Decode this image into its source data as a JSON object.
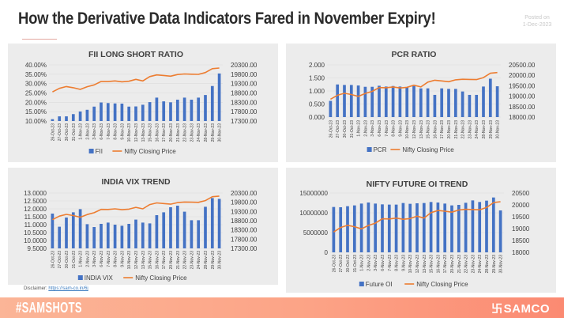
{
  "header": {
    "title": "How the Derivative Data Indicators Fared in November Expiry!",
    "posted_label": "Posted on",
    "posted_date": "1-Dec-2023"
  },
  "footer": {
    "hashtag": "#SAMSHOTS",
    "brand": "SAMCO",
    "brand_icon": "samco-logo-icon",
    "disclaimer_label": "Disclaimer:",
    "disclaimer_link": "https://sam-co.in/6j"
  },
  "colors": {
    "bar": "#4472c4",
    "line": "#ed7d31",
    "panel_bg": "#ececec",
    "footer_start": "#fbb597",
    "footer_end": "#fb8a72"
  },
  "chart_data": [
    {
      "id": "fii",
      "type": "bar+line",
      "title": "FII LONG SHORT RATIO",
      "categories": [
        "26-Oct-23",
        "27-Oct-23",
        "30-Oct-23",
        "31-Oct-23",
        "1-Nov-23",
        "2-Nov-23",
        "3-Nov-23",
        "6-Nov-23",
        "7-Nov-23",
        "8-Nov-23",
        "9-Nov-23",
        "10-Nov-23",
        "12-Nov-23",
        "13-Nov-23",
        "15-Nov-23",
        "16-Nov-23",
        "17-Nov-23",
        "20-Nov-23",
        "21-Nov-23",
        "22-Nov-23",
        "23-Nov-23",
        "24-Nov-23",
        "28-Nov-23",
        "29-Nov-23",
        "30-Nov-23"
      ],
      "series": [
        {
          "name": "FII",
          "kind": "bar",
          "axis": "left",
          "values": [
            11.0,
            12.5,
            12.5,
            13.7,
            15.1,
            16.0,
            17.7,
            19.9,
            19.6,
            19.4,
            19.3,
            17.7,
            17.8,
            18.7,
            20.1,
            22.5,
            20.5,
            20.0,
            21.4,
            22.5,
            21.4,
            22.5,
            23.9,
            28.7,
            35.4
          ]
        },
        {
          "name": "Nifty Closing Price",
          "kind": "line",
          "axis": "right",
          "values": [
            18857,
            19047,
            19141,
            19080,
            18989,
            19133,
            19231,
            19412,
            19407,
            19444,
            19395,
            19425,
            19525,
            19444,
            19675,
            19765,
            19732,
            19694,
            19783,
            19812,
            19802,
            19795,
            19890,
            20097,
            20133
          ]
        }
      ],
      "left_axis": {
        "min": 10,
        "max": 40,
        "step": 5,
        "ticks": [
          "10.00%",
          "15.00%",
          "20.00%",
          "25.00%",
          "30.00%",
          "35.00%",
          "40.00%"
        ]
      },
      "right_axis": {
        "min": 17300,
        "max": 20300,
        "step": 500,
        "ticks": [
          "17300.00",
          "17800.00",
          "18300.00",
          "18800.00",
          "19300.00",
          "19800.00",
          "20300.00"
        ]
      },
      "legend": [
        "FII",
        "Nifty Closing Price"
      ],
      "legend_position": "bottom"
    },
    {
      "id": "pcr",
      "type": "bar+line",
      "title": "PCR RATIO",
      "categories": [
        "26-Oct-23",
        "27-Oct-23",
        "30-Oct-23",
        "31-Oct-23",
        "1-Nov-23",
        "2-Nov-23",
        "3-Nov-23",
        "6-Nov-23",
        "7-Nov-23",
        "8-Nov-23",
        "9-Nov-23",
        "10-Nov-23",
        "12-Nov-23",
        "13-Nov-23",
        "15-Nov-23",
        "16-Nov-23",
        "17-Nov-23",
        "20-Nov-23",
        "21-Nov-23",
        "22-Nov-23",
        "23-Nov-23",
        "24-Nov-23",
        "28-Nov-23",
        "29-Nov-23",
        "30-Nov-23"
      ],
      "series": [
        {
          "name": "PCR",
          "kind": "bar",
          "axis": "left",
          "values": [
            0.62,
            1.25,
            1.23,
            1.23,
            1.21,
            1.16,
            1.16,
            1.2,
            1.17,
            1.19,
            1.17,
            1.14,
            1.19,
            1.1,
            1.1,
            0.85,
            1.1,
            1.08,
            1.08,
            0.98,
            0.85,
            0.85,
            1.17,
            1.47,
            1.18
          ]
        },
        {
          "name": "Nifty Closing Price",
          "kind": "line",
          "axis": "right",
          "values": [
            18857,
            19047,
            19141,
            19080,
            18989,
            19133,
            19231,
            19412,
            19407,
            19444,
            19395,
            19425,
            19525,
            19444,
            19675,
            19765,
            19732,
            19694,
            19783,
            19812,
            19802,
            19795,
            19890,
            20097,
            20133
          ]
        }
      ],
      "left_axis": {
        "min": 0,
        "max": 2,
        "step": 0.5,
        "ticks": [
          "0.000",
          "0.500",
          "1.000",
          "1.500",
          "2.000"
        ]
      },
      "right_axis": {
        "min": 18000,
        "max": 20500,
        "step": 500,
        "ticks": [
          "18000.00",
          "18500.00",
          "19000.00",
          "19500.00",
          "20000.00",
          "20500.00"
        ]
      },
      "legend": [
        "PCR",
        "Nifty Closing Price"
      ],
      "legend_position": "bottom"
    },
    {
      "id": "vix",
      "type": "bar+line",
      "title": "INDIA VIX TREND",
      "categories": [
        "26-Oct-23",
        "27-Oct-23",
        "30-Oct-23",
        "31-Oct-23",
        "1-Nov-23",
        "2-Nov-23",
        "3-Nov-23",
        "6-Nov-23",
        "7-Nov-23",
        "8-Nov-23",
        "9-Nov-23",
        "10-Nov-23",
        "12-Nov-23",
        "13-Nov-23",
        "15-Nov-23",
        "16-Nov-23",
        "17-Nov-23",
        "20-Nov-23",
        "21-Nov-23",
        "22-Nov-23",
        "23-Nov-23",
        "24-Nov-23",
        "28-Nov-23",
        "29-Nov-23",
        "30-Nov-23"
      ],
      "series": [
        {
          "name": "INDIA VIX",
          "kind": "bar",
          "axis": "left",
          "values": [
            11.7,
            10.87,
            11.45,
            11.78,
            11.98,
            11.03,
            10.85,
            11.05,
            11.13,
            11.0,
            10.93,
            11.05,
            11.32,
            11.13,
            11.08,
            11.6,
            11.78,
            12.1,
            12.2,
            11.82,
            11.28,
            11.28,
            12.13,
            12.68,
            12.63
          ]
        },
        {
          "name": "Nifty Closing Price",
          "kind": "line",
          "axis": "right",
          "values": [
            18857,
            19047,
            19141,
            19080,
            18989,
            19133,
            19231,
            19412,
            19407,
            19444,
            19395,
            19425,
            19525,
            19444,
            19675,
            19765,
            19732,
            19694,
            19783,
            19812,
            19802,
            19795,
            19890,
            20097,
            20133
          ]
        }
      ],
      "left_axis": {
        "min": 9.5,
        "max": 13,
        "step": 0.5,
        "ticks": [
          "9.5000",
          "10.0000",
          "10.5000",
          "11.0000",
          "11.5000",
          "12.0000",
          "12.5000",
          "13.0000"
        ]
      },
      "right_axis": {
        "min": 17300,
        "max": 20300,
        "step": 500,
        "ticks": [
          "17300.00",
          "17800.00",
          "18300.00",
          "18800.00",
          "19300.00",
          "19800.00",
          "20300.00"
        ]
      },
      "legend": [
        "INDIA VIX",
        "Nifty Closing Price"
      ],
      "legend_position": "bottom"
    },
    {
      "id": "oi",
      "type": "bar+line",
      "title": "NIFTY FUTURE OI TREND",
      "categories": [
        "26-Oct-23",
        "27-Oct-23",
        "30-Oct-23",
        "31-Oct-23",
        "1-Nov-23",
        "2-Nov-23",
        "3-Nov-23",
        "6-Nov-23",
        "7-Nov-23",
        "8-Nov-23",
        "9-Nov-23",
        "10-Nov-23",
        "12-Nov-23",
        "13-Nov-23",
        "15-Nov-23",
        "16-Nov-23",
        "17-Nov-23",
        "20-Nov-23",
        "21-Nov-23",
        "22-Nov-23",
        "23-Nov-23",
        "24-Nov-23",
        "28-Nov-23",
        "29-Nov-23",
        "30-Nov-23"
      ],
      "series": [
        {
          "name": "Future OI",
          "kind": "bar",
          "axis": "left",
          "values": [
            11470000,
            11400000,
            11670000,
            11870000,
            12330000,
            12600000,
            12330000,
            12130000,
            12070000,
            12070000,
            12470000,
            12270000,
            12400000,
            12470000,
            12730000,
            12600000,
            12330000,
            11870000,
            12000000,
            12530000,
            13130000,
            12730000,
            13070000,
            13870000,
            10600000
          ]
        },
        {
          "name": "Nifty Closing Price",
          "kind": "line",
          "axis": "right",
          "values": [
            18857,
            19047,
            19141,
            19080,
            18989,
            19133,
            19231,
            19412,
            19407,
            19444,
            19395,
            19425,
            19525,
            19444,
            19675,
            19765,
            19732,
            19694,
            19783,
            19812,
            19802,
            19795,
            19890,
            20097,
            20133
          ]
        }
      ],
      "left_axis": {
        "min": 0,
        "max": 15000000,
        "step": 5000000,
        "ticks": [
          "0",
          "5000000",
          "10000000",
          "15000000"
        ]
      },
      "right_axis": {
        "min": 18000,
        "max": 20500,
        "step": 500,
        "ticks": [
          "18000",
          "18500",
          "19000",
          "19500",
          "20000",
          "20500"
        ]
      },
      "legend": [
        "Future OI",
        "Nifty Closing Price"
      ],
      "legend_position": "bottom"
    }
  ]
}
